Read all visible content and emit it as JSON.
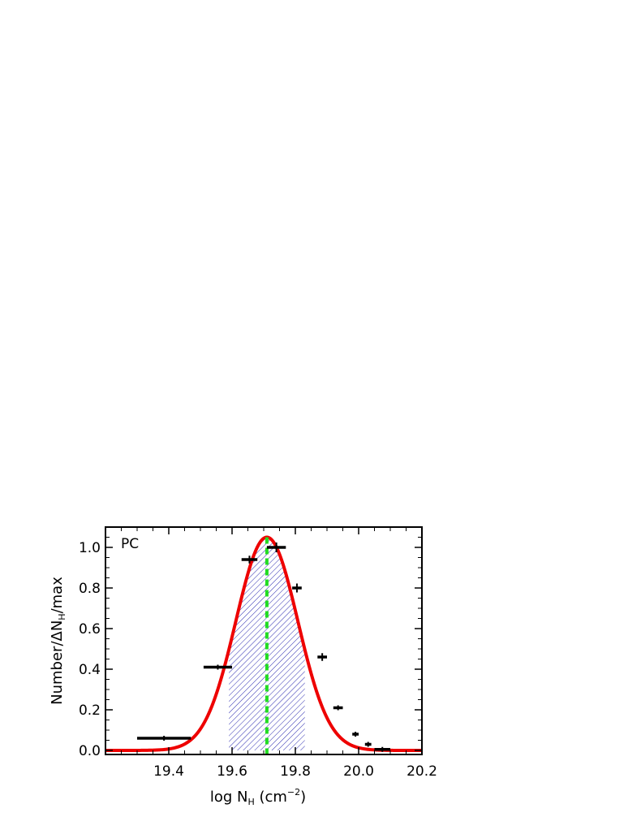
{
  "chart_data": {
    "type": "histogram",
    "panel_label": "PC",
    "xlabel": {
      "prefix": "log N",
      "sub": "H",
      "units": " (cm",
      "sup": "−2",
      "close": ")"
    },
    "ylabel": {
      "prefix": "Number/ΔN",
      "sub": "H",
      "suffix": "/max"
    },
    "xlim": [
      19.2,
      20.2
    ],
    "ylim": [
      -0.02,
      1.1
    ],
    "xticks": [
      19.4,
      19.6,
      19.8,
      20.0,
      20.2
    ],
    "xtick_labels": [
      "19.4",
      "19.6",
      "19.8",
      "20.0",
      "20.2"
    ],
    "yticks": [
      0.0,
      0.2,
      0.4,
      0.6,
      0.8,
      1.0
    ],
    "ytick_labels": [
      "0.0",
      "0.2",
      "0.4",
      "0.6",
      "0.8",
      "1.0"
    ],
    "bins": [
      {
        "x0": 19.3,
        "x1": 19.47,
        "y": 0.06,
        "err": 0.0
      },
      {
        "x0": 19.51,
        "x1": 19.6,
        "y": 0.41,
        "err": 0.0
      },
      {
        "x0": 19.63,
        "x1": 19.68,
        "y": 0.94,
        "err": 0.007
      },
      {
        "x0": 19.71,
        "x1": 19.77,
        "y": 1.0,
        "err": 0.012
      },
      {
        "x0": 19.79,
        "x1": 19.82,
        "y": 0.8,
        "err": 0.01
      },
      {
        "x0": 19.87,
        "x1": 19.9,
        "y": 0.46,
        "err": 0.007
      },
      {
        "x0": 19.92,
        "x1": 19.95,
        "y": 0.21,
        "err": 0.0
      },
      {
        "x0": 19.98,
        "x1": 20.0,
        "y": 0.08,
        "err": 0.0
      },
      {
        "x0": 20.02,
        "x1": 20.04,
        "y": 0.03,
        "err": 0.0
      },
      {
        "x0": 20.05,
        "x1": 20.1,
        "y": 0.005,
        "err": 0.0
      }
    ],
    "fit": {
      "type": "gaussian",
      "amplitude": 1.05,
      "mean": 19.71,
      "sigma": 0.098,
      "color": "#ee0000"
    },
    "peak_line": {
      "x": 19.71,
      "color": "#22dd22",
      "style": "dashed"
    },
    "shaded_interval": {
      "x0": 19.59,
      "x1": 19.83,
      "color": "#2b2bb0",
      "pattern": "diagonal-hatch"
    },
    "colors": {
      "bins": "#000000",
      "axes": "#000000"
    }
  }
}
